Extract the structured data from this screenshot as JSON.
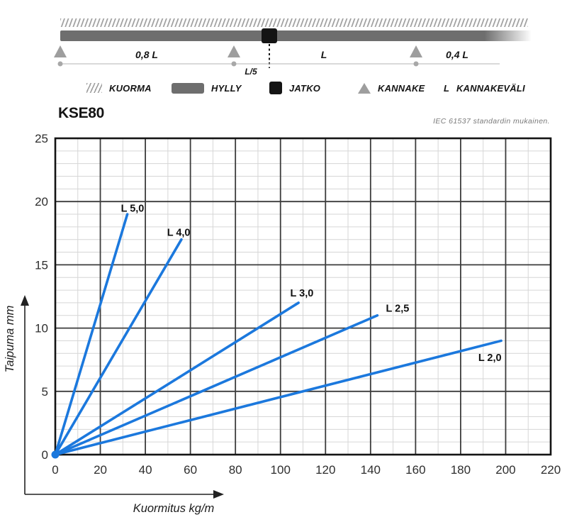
{
  "diagram": {
    "span1_label": "0,8 L",
    "span2_label": "L",
    "span3_label": "0,4 L",
    "joint_offset_label": "L/5"
  },
  "legend": {
    "items": [
      {
        "icon": "hatch-icon",
        "label": "KUORMA"
      },
      {
        "icon": "bar-icon",
        "label": "HYLLY"
      },
      {
        "icon": "square-icon",
        "label": "JATKO"
      },
      {
        "icon": "triangle-icon",
        "label": "KANNAKE"
      },
      {
        "icon": "letter-L",
        "symbol": "L",
        "label": "KANNAKEVÄLI"
      }
    ]
  },
  "colors": {
    "line_blue": "#1b78dd",
    "grid_minor": "#d6d6d6",
    "grid_major": "#3c3c3c",
    "border": "#141414",
    "tick_text": "#2e2e2e",
    "bar_gray": "#6e6e6e",
    "support_gray": "#9e9e9e"
  },
  "chart_data": {
    "type": "line",
    "title": "KSE80",
    "note": "IEC 61537 standardin mukainen.",
    "xlabel": "Kuormitus kg/m",
    "ylabel": "Taipuma mm",
    "xlim": [
      0,
      220
    ],
    "ylim": [
      0,
      25
    ],
    "x_ticks": [
      0,
      20,
      40,
      60,
      80,
      100,
      120,
      140,
      160,
      180,
      200,
      220
    ],
    "y_ticks": [
      0,
      5,
      10,
      15,
      20,
      25
    ],
    "x_major_step": 20,
    "x_minor_step": 10,
    "y_major_step": 5,
    "y_minor_step": 1,
    "grid": true,
    "legend_position": "inline-labels",
    "series": [
      {
        "name": "L 5,0",
        "points": [
          [
            0,
            0
          ],
          [
            32,
            19
          ]
        ],
        "label_at": [
          34.3,
          19.2
        ]
      },
      {
        "name": "L 4,0",
        "points": [
          [
            0,
            0
          ],
          [
            56,
            17
          ]
        ],
        "label_at": [
          54.8,
          17.3
        ]
      },
      {
        "name": "L 3,0",
        "points": [
          [
            0,
            0
          ],
          [
            108,
            12
          ]
        ],
        "label_at": [
          109.5,
          12.5
        ]
      },
      {
        "name": "L 2,5",
        "points": [
          [
            0,
            0
          ],
          [
            143,
            11
          ]
        ],
        "label_at": [
          152.0,
          11.3
        ]
      },
      {
        "name": "L 2,0",
        "points": [
          [
            0,
            0
          ],
          [
            198,
            9
          ]
        ],
        "label_at": [
          193.0,
          7.4
        ]
      }
    ]
  }
}
